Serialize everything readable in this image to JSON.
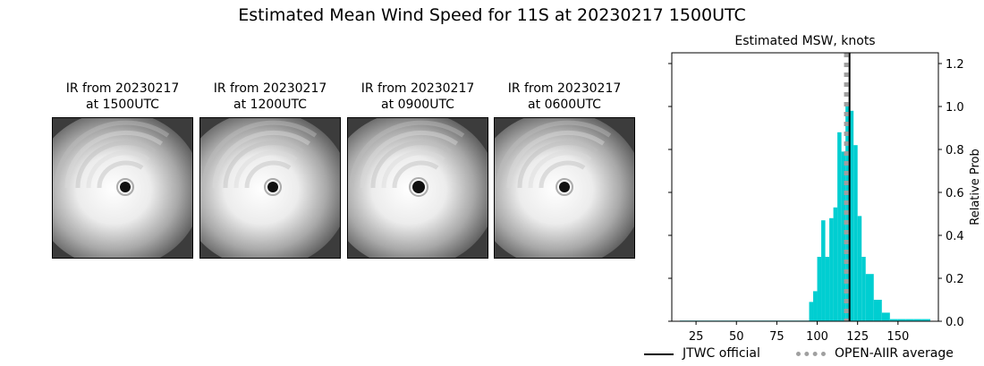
{
  "figure": {
    "title": "Estimated Mean Wind Speed for 11S at 20230217 1500UTC"
  },
  "ir_panels": [
    {
      "line1": "IR from 20230217",
      "line2": "at 1500UTC",
      "eye_size": 6
    },
    {
      "line1": "IR from 20230217",
      "line2": "at 1200UTC",
      "eye_size": 6
    },
    {
      "line1": "IR from 20230217",
      "line2": "at 0900UTC",
      "eye_size": 7
    },
    {
      "line1": "IR from 20230217",
      "line2": "at 0600UTC",
      "eye_size": 6
    }
  ],
  "chart_data": {
    "type": "bar",
    "title": "Estimated MSW, knots",
    "xlabel": "",
    "ylabel": "Relative Prob",
    "xlim": [
      10,
      175
    ],
    "ylim": [
      0,
      1.25
    ],
    "x_ticks": [
      25,
      50,
      75,
      100,
      125,
      150
    ],
    "y_ticks": [
      0.0,
      0.2,
      0.4,
      0.6,
      0.8,
      1.0,
      1.2
    ],
    "y_tick_labels": [
      "0.0",
      "0.2",
      "0.4",
      "0.6",
      "0.8",
      "1.0",
      "1.2"
    ],
    "bin_width": 5,
    "bins": [
      {
        "x": 15,
        "value": 0.003
      },
      {
        "x": 20,
        "value": 0.003
      },
      {
        "x": 25,
        "value": 0.003
      },
      {
        "x": 30,
        "value": 0.003
      },
      {
        "x": 35,
        "value": 0.003
      },
      {
        "x": 40,
        "value": 0.003
      },
      {
        "x": 45,
        "value": 0.003
      },
      {
        "x": 50,
        "value": 0.003
      },
      {
        "x": 55,
        "value": 0.003
      },
      {
        "x": 60,
        "value": 0.003
      },
      {
        "x": 65,
        "value": 0.003
      },
      {
        "x": 70,
        "value": 0.003
      },
      {
        "x": 75,
        "value": 0.003
      },
      {
        "x": 80,
        "value": 0.003
      },
      {
        "x": 85,
        "value": 0.003
      },
      {
        "x": 90,
        "value": 0.003
      },
      {
        "x": 95,
        "value": 0.09
      },
      {
        "x": 97.5,
        "value": 0.14
      },
      {
        "x": 100,
        "value": 0.3
      },
      {
        "x": 102.5,
        "value": 0.47
      },
      {
        "x": 105,
        "value": 0.3
      },
      {
        "x": 107.5,
        "value": 0.48
      },
      {
        "x": 110,
        "value": 0.53
      },
      {
        "x": 112.5,
        "value": 0.88
      },
      {
        "x": 115,
        "value": 0.79
      },
      {
        "x": 117.5,
        "value": 1.0
      },
      {
        "x": 120,
        "value": 0.98
      },
      {
        "x": 122.5,
        "value": 0.82
      },
      {
        "x": 125,
        "value": 0.49
      },
      {
        "x": 127.5,
        "value": 0.3
      },
      {
        "x": 130,
        "value": 0.22
      },
      {
        "x": 135,
        "value": 0.1
      },
      {
        "x": 140,
        "value": 0.04
      },
      {
        "x": 145,
        "value": 0.01
      },
      {
        "x": 150,
        "value": 0.01
      },
      {
        "x": 155,
        "value": 0.01
      },
      {
        "x": 160,
        "value": 0.01
      },
      {
        "x": 165,
        "value": 0.01
      }
    ],
    "lines": [
      {
        "name": "JTWC official",
        "x": 120,
        "style": "solid",
        "color": "#000000"
      },
      {
        "name": "OPEN-AIIR average",
        "x": 118,
        "style": "dotted",
        "color": "#a0a0a0"
      }
    ],
    "bar_color": "#00ced1",
    "legend_position": "bottom"
  }
}
